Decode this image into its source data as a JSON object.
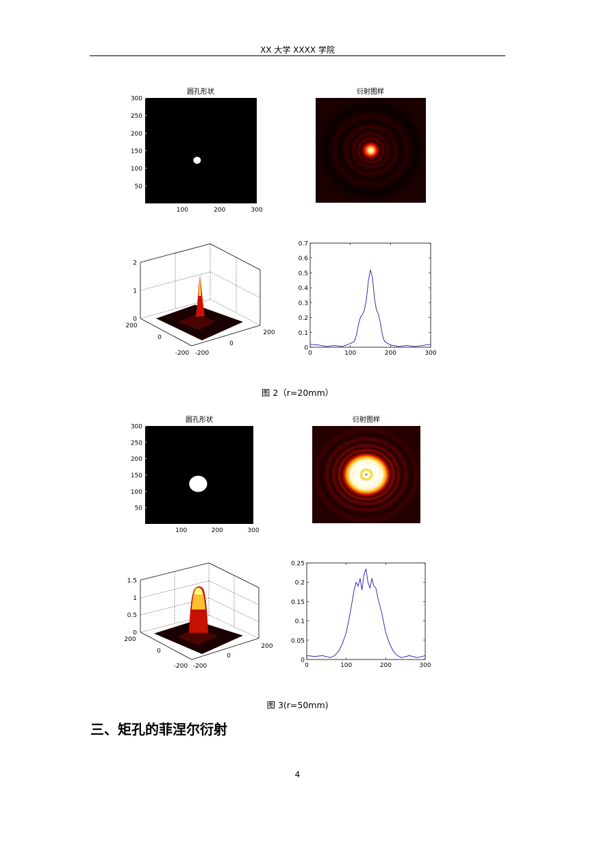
{
  "header": {
    "text": "XX 大学 XXXX 学院"
  },
  "figures": [
    {
      "caption": "图 2（r=20mm）",
      "aperture_title": "圆孔形状",
      "pattern_title": "衍射图样",
      "aperture": {
        "radius_px": 10,
        "center": [
          150,
          150
        ],
        "xticks": [
          "100",
          "200",
          "300"
        ],
        "yticks": [
          "300",
          "250",
          "200",
          "150",
          "100",
          "50"
        ]
      },
      "surface": {
        "zticks": [
          "2",
          "1",
          "0"
        ],
        "xticks": [
          "200",
          "0",
          "-200"
        ],
        "yticks": [
          "-200",
          "0",
          "200"
        ]
      },
      "chart_data": {
        "type": "line",
        "xlim": [
          0,
          300
        ],
        "ylim": [
          0,
          0.7
        ],
        "xticks": [
          "0",
          "100",
          "200",
          "300"
        ],
        "yticks": [
          "0",
          "0.1",
          "0.2",
          "0.3",
          "0.4",
          "0.5",
          "0.6",
          "0.7"
        ],
        "series": [
          {
            "x": [
              0,
              20,
              40,
              60,
              80,
              100,
              110,
              115,
              120,
              125,
              130,
              135,
              140,
              145,
              150,
              155,
              160,
              165,
              170,
              175,
              180,
              185,
              190,
              200,
              220,
              240,
              260,
              280,
              300
            ],
            "values": [
              0.02,
              0.015,
              0.005,
              0.012,
              0.005,
              0.025,
              0.04,
              0.08,
              0.15,
              0.2,
              0.22,
              0.25,
              0.32,
              0.45,
              0.52,
              0.47,
              0.33,
              0.25,
              0.22,
              0.16,
              0.08,
              0.04,
              0.03,
              0.015,
              0.005,
              0.012,
              0.005,
              0.012,
              0.02
            ]
          }
        ]
      }
    },
    {
      "caption": "图 3(r=50mm)",
      "aperture_title": "圆孔形状",
      "pattern_title": "衍射图样",
      "aperture": {
        "radius_px": 25,
        "center": [
          150,
          150
        ],
        "xticks": [
          "100",
          "200",
          "300"
        ],
        "yticks": [
          "300",
          "250",
          "200",
          "150",
          "100",
          "50"
        ]
      },
      "surface": {
        "zticks": [
          "1.5",
          "1",
          "0.5",
          "0"
        ],
        "xticks": [
          "200",
          "0",
          "-200"
        ],
        "yticks": [
          "-200",
          "0",
          "200"
        ]
      },
      "chart_data": {
        "type": "line",
        "xlim": [
          0,
          300
        ],
        "ylim": [
          0,
          0.25
        ],
        "xticks": [
          "0",
          "100",
          "200",
          "300"
        ],
        "yticks": [
          "0",
          "0.05",
          "0.1",
          "0.15",
          "0.2",
          "0.25"
        ],
        "series": [
          {
            "x": [
              0,
              20,
              40,
              60,
              70,
              80,
              90,
              100,
              110,
              120,
              125,
              130,
              135,
              140,
              145,
              150,
              155,
              160,
              165,
              170,
              175,
              180,
              190,
              200,
              210,
              220,
              230,
              240,
              260,
              280,
              300
            ],
            "values": [
              0.01,
              0.008,
              0.01,
              0.005,
              0.01,
              0.02,
              0.04,
              0.07,
              0.12,
              0.18,
              0.2,
              0.19,
              0.21,
              0.18,
              0.22,
              0.235,
              0.2,
              0.185,
              0.21,
              0.19,
              0.185,
              0.16,
              0.12,
              0.07,
              0.04,
              0.02,
              0.01,
              0.005,
              0.01,
              0.005,
              0.01
            ]
          }
        ]
      }
    }
  ],
  "section_heading": "三、矩孔的菲涅尔衍射",
  "page_number": "4"
}
